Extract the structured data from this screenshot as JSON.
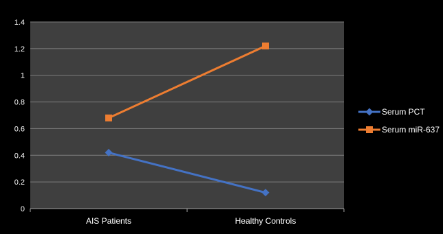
{
  "chart_data": {
    "type": "line",
    "categories": [
      "AIS Patients",
      "Healthy Controls"
    ],
    "series": [
      {
        "name": "Serum PCT",
        "values": [
          0.42,
          0.12
        ],
        "color": "#4472C4",
        "marker": "diamond"
      },
      {
        "name": "Serum miR-637",
        "values": [
          0.68,
          1.22
        ],
        "color": "#ED7D31",
        "marker": "square"
      }
    ],
    "title": "",
    "xlabel": "",
    "ylabel": "",
    "ylim": [
      0,
      1.4
    ],
    "yticks": [
      "0",
      "0.2",
      "0.4",
      "0.6",
      "0.8",
      "1",
      "1.2",
      "1.4"
    ],
    "grid": true,
    "legend_position": "right",
    "colors": {
      "background": "#000000",
      "plot_area": "#3F3F3F",
      "gridline": "#7F7F7F",
      "axis": "#A6A6A6",
      "text": "#FFFFFF"
    }
  }
}
